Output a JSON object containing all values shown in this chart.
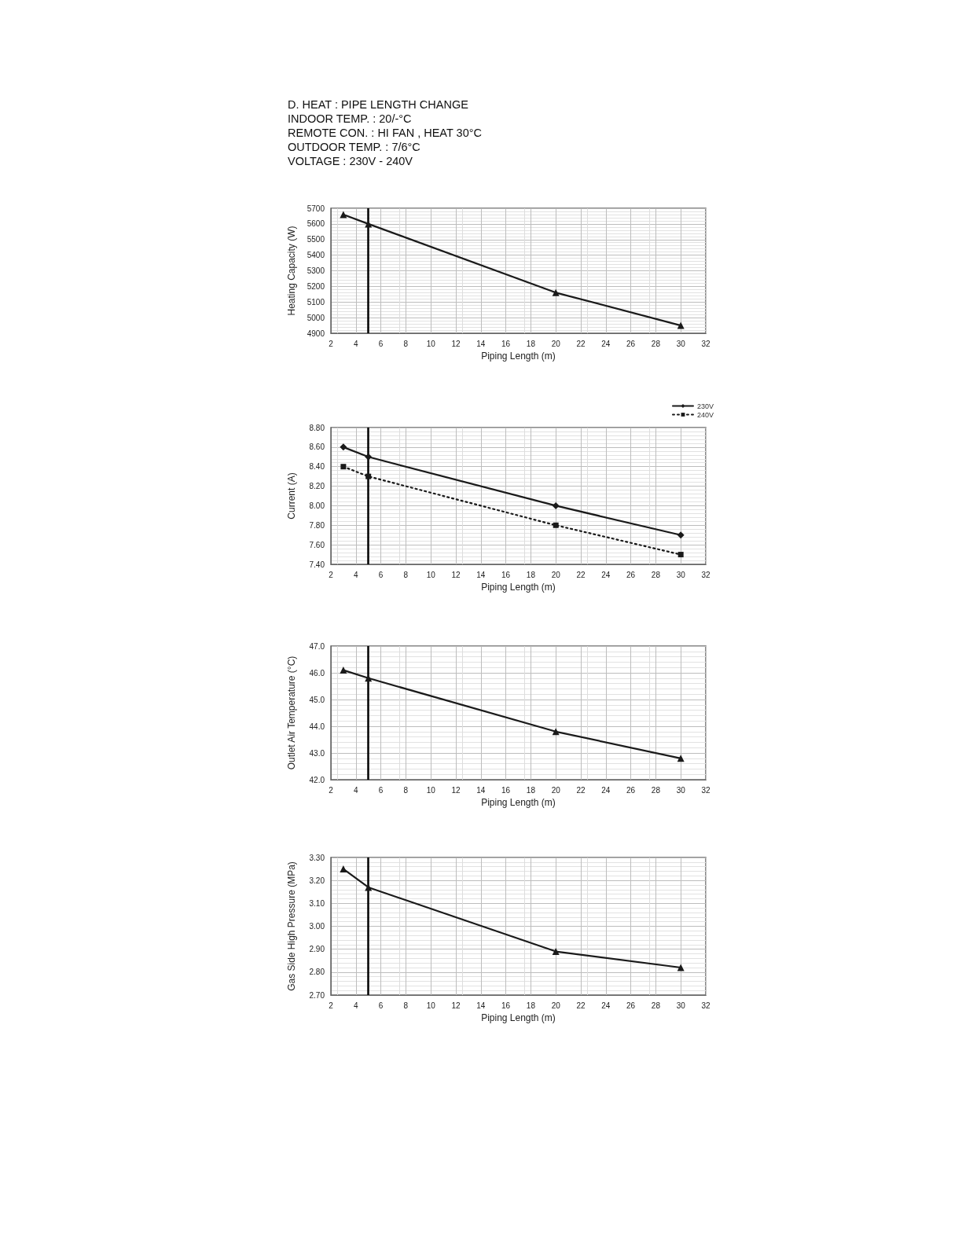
{
  "chart_data": [
    {
      "type": "line",
      "title": "D. HEAT : PIPE LENGTH CHANGE",
      "annotations": [
        "INDOOR TEMP. : 20/-°C",
        "REMOTE CON. : HI FAN , HEAT 30°C",
        "OUTDOOR TEMP. : 7/6°C",
        "VOLTAGE : 230V - 240V"
      ],
      "xlabel": "Piping Length (m)",
      "ylabel": "Heating Capacity (W)",
      "x": [
        3,
        5,
        20,
        30
      ],
      "series": [
        {
          "color": "#1a1a1a",
          "values": [
            5660,
            5600,
            5160,
            4950
          ]
        }
      ],
      "xlim": [
        2,
        32
      ],
      "xticks": [
        2,
        4,
        6,
        8,
        10,
        12,
        14,
        16,
        18,
        20,
        22,
        24,
        26,
        28,
        30,
        32
      ],
      "ylim": [
        4900,
        5700
      ],
      "yticks": [
        4900,
        5000,
        5100,
        5200,
        5300,
        5400,
        5500,
        5600,
        5700
      ],
      "ref_lines": [
        {
          "axis": "x",
          "value": 5,
          "color": "#000000"
        }
      ],
      "grid": true,
      "marker": "triangle",
      "line_style": "solid"
    },
    {
      "type": "line",
      "xlabel": "Piping Length (m)",
      "ylabel": "Current (A)",
      "x": [
        3,
        5,
        20,
        30
      ],
      "series": [
        {
          "name": "230V",
          "color": "#1a1a1a",
          "marker": "diamond",
          "line_style": "solid",
          "values": [
            8.6,
            8.5,
            8.0,
            7.7
          ]
        },
        {
          "name": "240V",
          "color": "#1a1a1a",
          "marker": "square",
          "line_style": "dotted",
          "values": [
            8.4,
            8.3,
            7.8,
            7.5
          ]
        }
      ],
      "xlim": [
        2,
        32
      ],
      "xticks": [
        2,
        4,
        6,
        8,
        10,
        12,
        14,
        16,
        18,
        20,
        22,
        24,
        26,
        28,
        30,
        32
      ],
      "ylim": [
        7.4,
        8.8
      ],
      "yticks": [
        {
          "value": 7.4,
          "label": "7.40"
        },
        {
          "value": 7.6,
          "label": "7.60"
        },
        {
          "value": 7.8,
          "label": "7.80"
        },
        {
          "value": 8.0,
          "label": "8.00"
        },
        {
          "value": 8.2,
          "label": "8.20"
        },
        {
          "value": 8.4,
          "label": "8.40"
        },
        {
          "value": 8.6,
          "label": "8.60"
        },
        {
          "value": 8.8,
          "label": "8.80"
        }
      ],
      "ref_lines": [
        {
          "axis": "x",
          "value": 5,
          "color": "#000000"
        }
      ],
      "grid": true,
      "legend": "top right"
    },
    {
      "type": "line",
      "xlabel": "Piping Length (m)",
      "ylabel": "Outlet Air Temperature (°C)",
      "x": [
        3,
        5,
        20,
        30
      ],
      "series": [
        {
          "color": "#1a1a1a",
          "values": [
            46.1,
            45.8,
            43.8,
            42.8
          ]
        }
      ],
      "xlim": [
        2,
        32
      ],
      "xticks": [
        2,
        4,
        6,
        8,
        10,
        12,
        14,
        16,
        18,
        20,
        22,
        24,
        26,
        28,
        30,
        32
      ],
      "ylim": [
        42,
        47
      ],
      "yticks": [
        {
          "value": 42,
          "label": "42.0"
        },
        {
          "value": 43,
          "label": "43.0"
        },
        {
          "value": 44,
          "label": "44.0"
        },
        {
          "value": 45,
          "label": "45.0"
        },
        {
          "value": 46,
          "label": "46.0"
        },
        {
          "value": 47,
          "label": "47.0"
        }
      ],
      "ref_lines": [
        {
          "axis": "x",
          "value": 5,
          "color": "#000000"
        }
      ],
      "grid": true,
      "marker": "triangle",
      "line_style": "solid"
    },
    {
      "type": "line",
      "xlabel": "Piping Length (m)",
      "ylabel": "Gas Side High Pressure (MPa)",
      "x": [
        3,
        5,
        20,
        30
      ],
      "series": [
        {
          "color": "#1a1a1a",
          "values": [
            3.25,
            3.17,
            2.89,
            2.82
          ]
        }
      ],
      "xlim": [
        2,
        32
      ],
      "xticks": [
        2,
        4,
        6,
        8,
        10,
        12,
        14,
        16,
        18,
        20,
        22,
        24,
        26,
        28,
        30,
        32
      ],
      "ylim": [
        2.7,
        3.3
      ],
      "yticks": [
        {
          "value": 2.7,
          "label": "2.70"
        },
        {
          "value": 2.8,
          "label": "2.80"
        },
        {
          "value": 2.9,
          "label": "2.90"
        },
        {
          "value": 3.0,
          "label": "3.00"
        },
        {
          "value": 3.1,
          "label": "3.10"
        },
        {
          "value": 3.2,
          "label": "3.20"
        },
        {
          "value": 3.3,
          "label": "3.30"
        }
      ],
      "ref_lines": [
        {
          "axis": "x",
          "value": 5,
          "color": "#000000"
        }
      ],
      "grid": true,
      "marker": "triangle",
      "line_style": "solid"
    }
  ]
}
